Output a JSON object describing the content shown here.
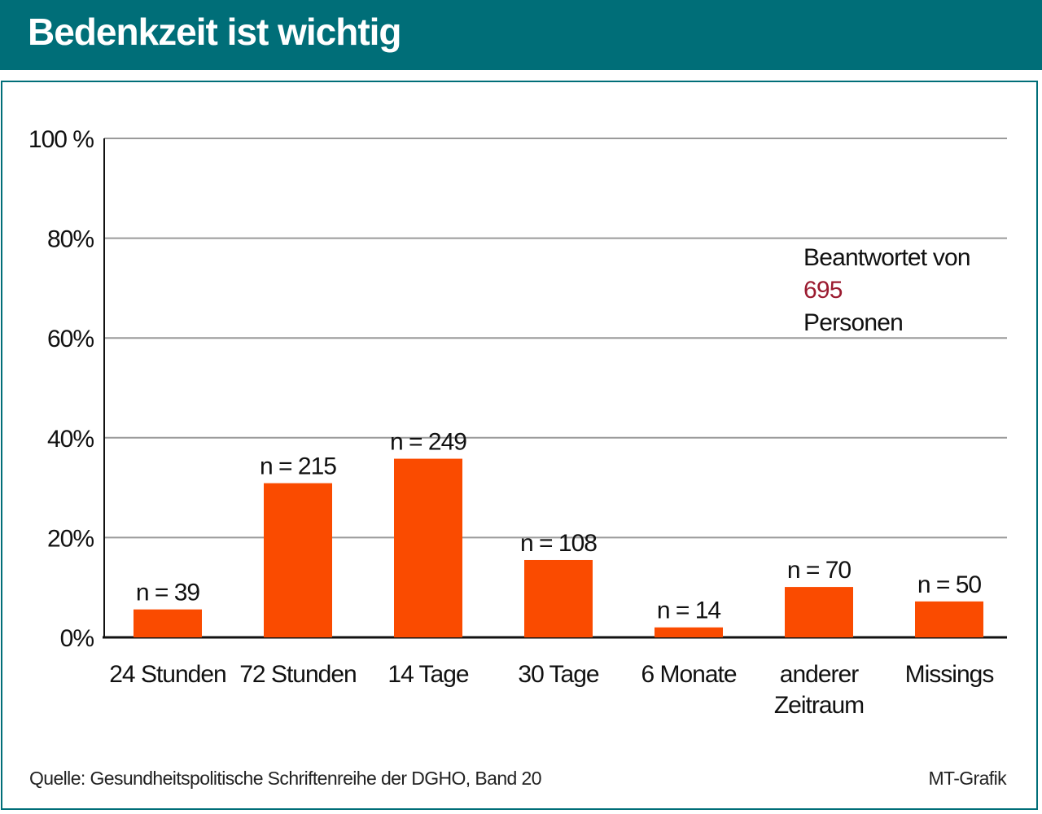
{
  "header": {
    "title": "Bedenkzeit ist wichtig"
  },
  "annotation": {
    "line1": "Beantwortet von",
    "number": "695",
    "line3": "Personen"
  },
  "footer": {
    "source": "Quelle: Gesundheitspolitische Schriftenreihe der DGHO, Band 20",
    "credit": "MT-Grafik"
  },
  "colors": {
    "bar": "#fa4b00",
    "header": "#006e78",
    "gridline": "#9a9a9a",
    "annotation_number": "#9b1b30"
  },
  "chart_data": {
    "type": "bar",
    "title": "Bedenkzeit ist wichtig",
    "xlabel": "",
    "ylabel": "",
    "ylim": [
      0,
      100
    ],
    "yticks": [
      0,
      20,
      40,
      60,
      80,
      100
    ],
    "ytick_labels": [
      "0%",
      "20%",
      "40%",
      "60%",
      "80%",
      "100 %"
    ],
    "grid": true,
    "categories": [
      "24 Stunden",
      "72 Stunden",
      "14 Tage",
      "30 Tage",
      "6 Monate",
      "anderer Zeitraum",
      "Missings"
    ],
    "category_lines": [
      [
        "24 Stunden"
      ],
      [
        "72 Stunden"
      ],
      [
        "14 Tage"
      ],
      [
        "30 Tage"
      ],
      [
        "6 Monate"
      ],
      [
        "anderer",
        "Zeitraum"
      ],
      [
        "Missings"
      ]
    ],
    "values": [
      5.6,
      30.9,
      35.8,
      15.5,
      2.0,
      10.1,
      7.2
    ],
    "data_labels": [
      "n = 39",
      "n = 215",
      "n = 249",
      "n = 108",
      "n = 14",
      "n = 70",
      "n = 50"
    ]
  }
}
